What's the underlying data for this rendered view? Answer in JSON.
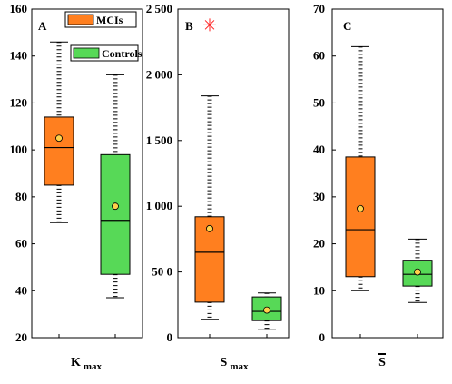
{
  "chart_data": [
    {
      "type": "box",
      "panel_label": "A",
      "xlabel": "K",
      "xlabel_sub": "max",
      "ylim": [
        20,
        160
      ],
      "yticks": [
        "20",
        "40",
        "60",
        "80",
        "100",
        "120",
        "140",
        "160"
      ],
      "legend_placement": "top-right",
      "series": [
        {
          "name": "MCIs",
          "color": "#ff7f1f",
          "whisker_low": 69,
          "q1": 85,
          "median": 101,
          "q3": 114,
          "whisker_high": 146,
          "mean": 105,
          "outliers": []
        },
        {
          "name": "Controls",
          "color": "#57d957",
          "whisker_low": 37,
          "q1": 47,
          "median": 70,
          "q3": 98,
          "whisker_high": 132,
          "mean": 76,
          "outliers": []
        }
      ]
    },
    {
      "type": "box",
      "panel_label": "B",
      "xlabel": "S",
      "xlabel_sub": "max",
      "ylim": [
        0,
        2500
      ],
      "yticks": [
        "0",
        "50 0",
        "1 000",
        "1 500",
        "2 000",
        "2 500"
      ],
      "series": [
        {
          "name": "MCIs",
          "color": "#ff7f1f",
          "whisker_low": 140,
          "q1": 270,
          "median": 650,
          "q3": 920,
          "whisker_high": 1840,
          "mean": 830,
          "outliers": [
            2380
          ]
        },
        {
          "name": "Controls",
          "color": "#57d957",
          "whisker_low": 60,
          "q1": 130,
          "median": 200,
          "q3": 310,
          "whisker_high": 340,
          "mean": 210,
          "outliers": []
        }
      ]
    },
    {
      "type": "box",
      "panel_label": "C",
      "xlabel": "S",
      "xlabel_overline": true,
      "ylim": [
        0,
        70
      ],
      "yticks": [
        "0",
        "10",
        "20",
        "30",
        "40",
        "50",
        "60",
        "70"
      ],
      "series": [
        {
          "name": "MCIs",
          "color": "#ff7f1f",
          "whisker_low": 10,
          "q1": 13,
          "median": 23,
          "q3": 38.5,
          "whisker_high": 62,
          "mean": 27.5,
          "outliers": []
        },
        {
          "name": "Controls",
          "color": "#57d957",
          "whisker_low": 7.5,
          "q1": 11,
          "median": 13.5,
          "q3": 16.5,
          "whisker_high": 21,
          "mean": 14,
          "outliers": []
        }
      ]
    }
  ]
}
